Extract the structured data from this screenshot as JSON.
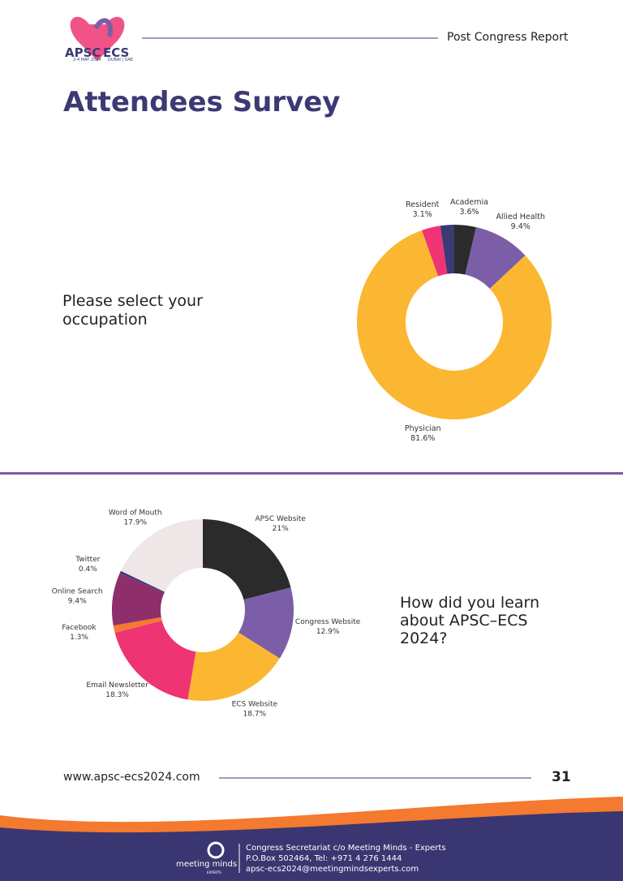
{
  "header": {
    "logo": {
      "left": "APSC",
      "right": "ECS",
      "dates": "2-4 MAY 2024",
      "place": "DUBAI | UAE"
    },
    "report": "Post Congress Report"
  },
  "title": "Attendees Survey",
  "questions": [
    "Please select your occupation",
    "How did you learn about APSC–ECS 2024?"
  ],
  "chart_data": [
    {
      "type": "donut",
      "categories": [
        "Academia",
        "Allied Health",
        "Physician",
        "Resident",
        null
      ],
      "values": [
        3.6,
        9.4,
        81.6,
        3.1,
        2.3
      ],
      "value_labels": [
        "3.6%",
        "9.4%",
        "81.6%",
        "3.1%",
        null
      ],
      "colors": [
        "#2b2b2b",
        "#7b5ea7",
        "#fbb731",
        "#ee3473",
        "#3b3a74"
      ]
    },
    {
      "type": "donut",
      "categories": [
        "APSC Website",
        "Congress Website",
        "ECS Website",
        "Email Newsletter",
        "Facebook",
        "Online Search",
        "Twitter",
        "Word of Mouth"
      ],
      "values": [
        21,
        12.9,
        18.7,
        18.3,
        1.3,
        9.4,
        0.4,
        17.9
      ],
      "value_labels": [
        "21%",
        "12.9%",
        "18.7%",
        "18.3%",
        "1.3%",
        "9.4%",
        "0.4%",
        "17.9%"
      ],
      "colors": [
        "#2b2b2b",
        "#7b5ea7",
        "#fbb731",
        "#ee3473",
        "#f37a2f",
        "#8e2f6c",
        "#3b3a74",
        "#efe6e8"
      ]
    }
  ],
  "footer": {
    "url": "www.apsc-ecs2024.com",
    "page": "31",
    "org": "meeting minds",
    "org_sub": "EXPERTS",
    "contact": [
      "Congress Secretariat c/o Meeting Minds - Experts",
      "P.O.Box 502464, Tel: +971 4 276 1444",
      "apsc-ecs2024@meetingmindsexperts.com"
    ]
  }
}
